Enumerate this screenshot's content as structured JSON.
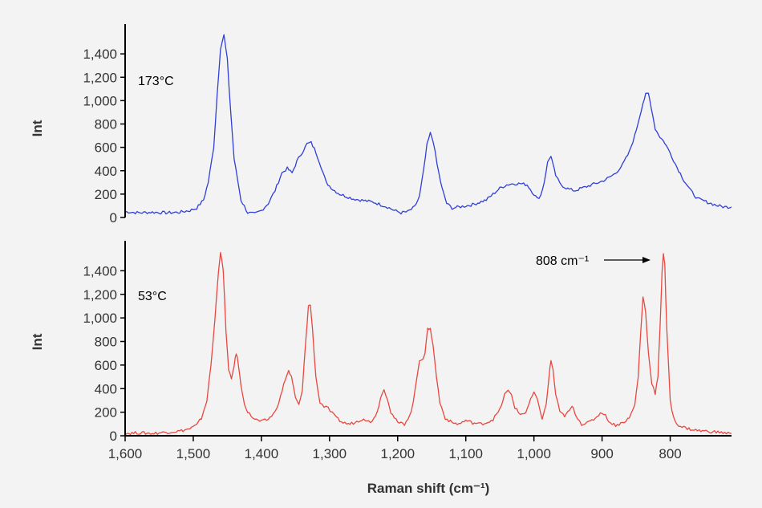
{
  "colors": {
    "background": "#f3f3f3",
    "top_series": "#2f3fd8",
    "bottom_series": "#e8473f",
    "axes": "#000000",
    "text": "#333333"
  },
  "chart_data": [
    {
      "type": "line",
      "panel": "top",
      "annotation": "173°C",
      "ylabel": "Int",
      "xlabel": "",
      "xlim": [
        1600,
        710
      ],
      "x_reversed": true,
      "ylim": [
        0,
        1600
      ],
      "yticks": [
        0,
        200,
        400,
        600,
        800,
        1000,
        1200,
        1400
      ],
      "ytick_labels": [
        "0",
        "200",
        "400",
        "600",
        "800",
        "1,000",
        "1,200",
        "1,400"
      ],
      "grid": false,
      "series": [
        {
          "color": "#2f3fd8",
          "x": [
            1600,
            1580,
            1560,
            1540,
            1520,
            1505,
            1495,
            1485,
            1478,
            1470,
            1465,
            1460,
            1455,
            1450,
            1445,
            1440,
            1430,
            1420,
            1410,
            1400,
            1390,
            1380,
            1370,
            1362,
            1355,
            1348,
            1340,
            1333,
            1327,
            1320,
            1312,
            1305,
            1295,
            1285,
            1275,
            1265,
            1255,
            1245,
            1235,
            1225,
            1215,
            1205,
            1195,
            1185,
            1175,
            1168,
            1162,
            1157,
            1152,
            1148,
            1142,
            1135,
            1128,
            1120,
            1110,
            1100,
            1090,
            1080,
            1070,
            1060,
            1050,
            1040,
            1030,
            1020,
            1010,
            1000,
            995,
            990,
            985,
            980,
            975,
            972,
            968,
            962,
            955,
            948,
            940,
            930,
            920,
            910,
            900,
            890,
            880,
            870,
            860,
            852,
            845,
            840,
            836,
            832,
            828,
            822,
            815,
            808,
            800,
            790,
            780,
            770,
            760,
            750,
            740,
            730,
            720,
            710
          ],
          "y": [
            50,
            40,
            45,
            40,
            45,
            60,
            80,
            150,
            300,
            600,
            1050,
            1450,
            1560,
            1350,
            900,
            500,
            150,
            40,
            30,
            60,
            120,
            230,
            380,
            420,
            380,
            480,
            560,
            630,
            640,
            560,
            430,
            300,
            240,
            200,
            180,
            160,
            150,
            140,
            130,
            110,
            90,
            60,
            40,
            50,
            90,
            180,
            400,
            620,
            720,
            660,
            450,
            250,
            120,
            80,
            90,
            100,
            110,
            130,
            150,
            200,
            250,
            280,
            290,
            290,
            280,
            200,
            160,
            190,
            300,
            470,
            530,
            450,
            360,
            290,
            260,
            240,
            230,
            250,
            270,
            290,
            310,
            340,
            380,
            450,
            560,
            700,
            860,
            980,
            1050,
            1060,
            950,
            760,
            690,
            640,
            550,
            430,
            320,
            230,
            160,
            140,
            120,
            100,
            90,
            90
          ]
        }
      ]
    },
    {
      "type": "line",
      "panel": "bottom",
      "annotation": "53°C",
      "peak_annotation": "808 cm⁻¹",
      "ylabel": "Int",
      "xlabel": "Raman shift (cm⁻¹)",
      "xlim": [
        1600,
        710
      ],
      "x_reversed": true,
      "xticks": [
        1600,
        1500,
        1400,
        1300,
        1200,
        1100,
        1000,
        900,
        800
      ],
      "xtick_labels": [
        "1,600",
        "1,500",
        "1,400",
        "1,300",
        "1,200",
        "1,100",
        "1,000",
        "900",
        "800"
      ],
      "ylim": [
        0,
        1600
      ],
      "yticks": [
        0,
        200,
        400,
        600,
        800,
        1000,
        1200,
        1400
      ],
      "ytick_labels": [
        "0",
        "200",
        "400",
        "600",
        "800",
        "1,000",
        "1,200",
        "1,400"
      ],
      "grid": false,
      "series": [
        {
          "color": "#e8473f",
          "x": [
            1600,
            1580,
            1560,
            1540,
            1520,
            1505,
            1495,
            1488,
            1480,
            1474,
            1468,
            1463,
            1460,
            1456,
            1452,
            1448,
            1444,
            1440,
            1437,
            1434,
            1430,
            1425,
            1420,
            1410,
            1400,
            1390,
            1380,
            1372,
            1365,
            1360,
            1356,
            1350,
            1345,
            1340,
            1335,
            1331,
            1328,
            1325,
            1320,
            1314,
            1308,
            1302,
            1296,
            1290,
            1280,
            1270,
            1260,
            1250,
            1240,
            1230,
            1225,
            1220,
            1215,
            1210,
            1200,
            1190,
            1180,
            1174,
            1168,
            1163,
            1160,
            1156,
            1152,
            1148,
            1143,
            1138,
            1130,
            1120,
            1110,
            1100,
            1090,
            1080,
            1070,
            1060,
            1050,
            1043,
            1038,
            1033,
            1028,
            1020,
            1012,
            1005,
            1000,
            995,
            988,
            982,
            978,
            975,
            972,
            968,
            962,
            955,
            948,
            944,
            940,
            936,
            930,
            920,
            910,
            905,
            900,
            895,
            888,
            880,
            870,
            860,
            852,
            847,
            843,
            840,
            836,
            832,
            827,
            822,
            818,
            815,
            812,
            810,
            808,
            805,
            800,
            795,
            790,
            780,
            770,
            760,
            750,
            740,
            730,
            720,
            710
          ],
          "y": [
            20,
            25,
            20,
            30,
            40,
            60,
            90,
            150,
            300,
            600,
            1000,
            1400,
            1560,
            1400,
            900,
            550,
            480,
            600,
            700,
            620,
            420,
            280,
            200,
            140,
            120,
            140,
            200,
            330,
            480,
            550,
            500,
            320,
            260,
            380,
            800,
            1100,
            1110,
            900,
            500,
            280,
            250,
            230,
            190,
            150,
            110,
            100,
            120,
            150,
            110,
            200,
            330,
            390,
            320,
            200,
            110,
            100,
            200,
            400,
            640,
            660,
            700,
            900,
            920,
            760,
            500,
            280,
            150,
            110,
            100,
            130,
            110,
            100,
            110,
            140,
            220,
            350,
            380,
            350,
            240,
            180,
            200,
            300,
            370,
            300,
            150,
            260,
            500,
            640,
            560,
            350,
            200,
            170,
            210,
            250,
            200,
            150,
            100,
            110,
            150,
            180,
            200,
            170,
            110,
            90,
            110,
            150,
            260,
            500,
            900,
            1180,
            1050,
            700,
            450,
            360,
            500,
            900,
            1400,
            1550,
            1450,
            900,
            300,
            150,
            100,
            70,
            55,
            45,
            40,
            35,
            30,
            25,
            20
          ]
        }
      ]
    }
  ]
}
